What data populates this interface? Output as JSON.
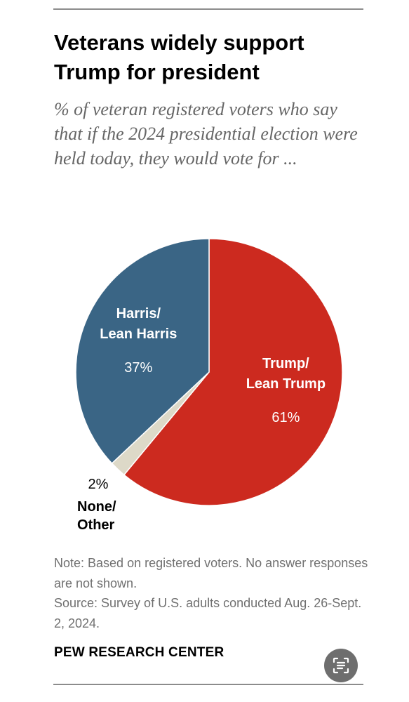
{
  "title": "Veterans widely support Trump for president",
  "subtitle": "% of veteran registered voters who say that if the 2024 presidential election were held today, they would vote for ...",
  "chart_data": {
    "type": "pie",
    "title": "Veterans widely support Trump for president",
    "subtitle": "% of veteran registered voters who say that if the 2024 presidential election were held today, they would vote for ...",
    "slices": [
      {
        "label_line1": "Trump/",
        "label_line2": "Lean Trump",
        "value": 61,
        "value_label": "61%",
        "color": "#cc2a1f"
      },
      {
        "label_line1": "None/",
        "label_line2": "Other",
        "value": 2,
        "value_label": "2%",
        "color": "#ddd9c8"
      },
      {
        "label_line1": "Harris/",
        "label_line2": "Lean Harris",
        "value": 37,
        "value_label": "37%",
        "color": "#3a6585"
      }
    ],
    "start_angle": "12 o'clock",
    "direction": "clockwise"
  },
  "notes": {
    "note": "Note: Based on registered voters. No answer responses are not shown.",
    "source": "Source: Survey of U.S. adults conducted Aug. 26-Sept. 2, 2024."
  },
  "brand": "PEW RESEARCH CENTER",
  "scan_icon": "scan-text-icon",
  "colors": {
    "title": "#000000",
    "subtitle": "#666666",
    "note": "#707070",
    "rule": "#8c8c8c",
    "inside_label": "#ffffff",
    "outside_label": "#000000",
    "scan_button": "#6e6e6e"
  }
}
